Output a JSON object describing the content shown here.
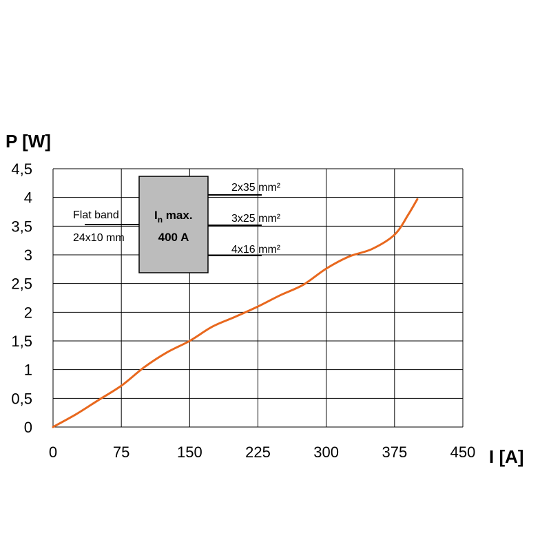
{
  "chart_data": {
    "type": "line",
    "xlabel": "I [A]",
    "ylabel": "P [W]",
    "xlim": [
      0,
      450
    ],
    "ylim": [
      0,
      4.5
    ],
    "x_ticks": [
      "0",
      "75",
      "150",
      "225",
      "300",
      "375",
      "450"
    ],
    "y_ticks": [
      "0",
      "0,5",
      "1",
      "1,5",
      "2",
      "2,5",
      "3",
      "3,5",
      "4",
      "4,5"
    ],
    "grid": true,
    "series": [
      {
        "color": "#e8681e",
        "x": [
          0,
          25,
          50,
          75,
          100,
          125,
          150,
          175,
          200,
          225,
          250,
          275,
          300,
          325,
          350,
          375,
          390,
          400
        ],
        "y": [
          0,
          0.22,
          0.47,
          0.72,
          1.04,
          1.3,
          1.5,
          1.75,
          1.92,
          2.1,
          2.3,
          2.48,
          2.76,
          2.97,
          3.1,
          3.35,
          3.7,
          3.97
        ]
      }
    ],
    "annotations": {
      "flat_band_line1": "Flat band",
      "flat_band_line2": "24x10 mm",
      "box_line1_main": "I",
      "box_line1_sub": "n",
      "box_line1_rest": " max.",
      "box_line2": "400 A",
      "conductor_1": "2x35 mm²",
      "conductor_2": "3x25 mm²",
      "conductor_3": "4x16 mm²"
    }
  }
}
